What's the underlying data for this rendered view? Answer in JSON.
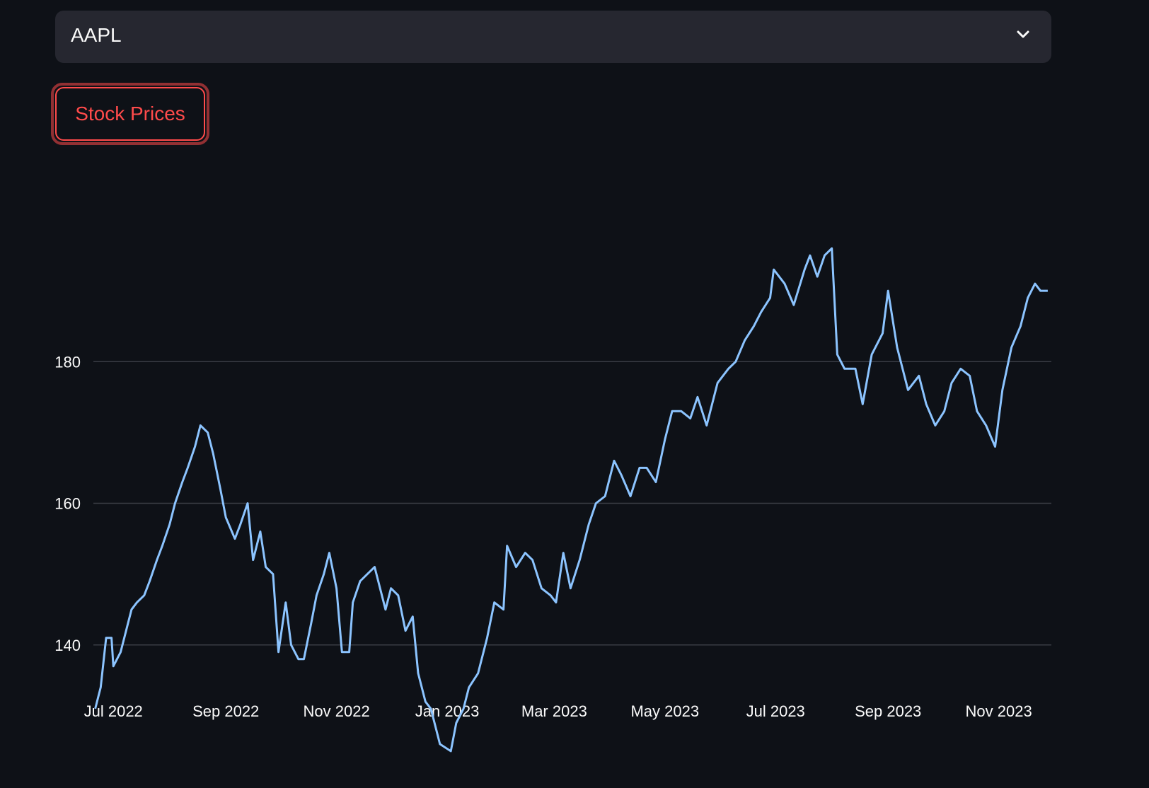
{
  "select": {
    "value": "AAPL"
  },
  "button": {
    "label": "Stock Prices"
  },
  "icons": {
    "select_arrow": "chevron-down-icon"
  },
  "colors": {
    "line": "#8cc4ff",
    "accent": "#ff4b4b",
    "grid": "#3a3d45",
    "background": "#0e1117",
    "select_bg": "#262730"
  },
  "chart_data": {
    "type": "line",
    "title": "",
    "xlabel": "",
    "ylabel": "",
    "x_ticks": [
      "Jul 2022",
      "Sep 2022",
      "Nov 2022",
      "Jan 2023",
      "Mar 2023",
      "May 2023",
      "Jul 2023",
      "Sep 2023",
      "Nov 2023"
    ],
    "y_ticks": [
      140,
      160,
      180
    ],
    "ylim": [
      120,
      200
    ],
    "xlim": [
      "2022-06-20",
      "2023-11-30"
    ],
    "grid": "horizontal",
    "series": [
      {
        "points": [
          [
            "2022-06-21",
            131
          ],
          [
            "2022-06-24",
            134
          ],
          [
            "2022-06-27",
            141
          ],
          [
            "2022-06-30",
            141
          ],
          [
            "2022-07-01",
            137
          ],
          [
            "2022-07-05",
            139
          ],
          [
            "2022-07-08",
            142
          ],
          [
            "2022-07-11",
            145
          ],
          [
            "2022-07-14",
            146
          ],
          [
            "2022-07-18",
            147
          ],
          [
            "2022-07-21",
            149
          ],
          [
            "2022-07-25",
            152
          ],
          [
            "2022-07-28",
            154
          ],
          [
            "2022-08-01",
            157
          ],
          [
            "2022-08-04",
            160
          ],
          [
            "2022-08-08",
            163
          ],
          [
            "2022-08-11",
            165
          ],
          [
            "2022-08-15",
            168
          ],
          [
            "2022-08-18",
            171
          ],
          [
            "2022-08-22",
            170
          ],
          [
            "2022-08-25",
            167
          ],
          [
            "2022-08-29",
            162
          ],
          [
            "2022-09-01",
            158
          ],
          [
            "2022-09-06",
            155
          ],
          [
            "2022-09-09",
            157
          ],
          [
            "2022-09-13",
            160
          ],
          [
            "2022-09-16",
            152
          ],
          [
            "2022-09-20",
            156
          ],
          [
            "2022-09-23",
            151
          ],
          [
            "2022-09-27",
            150
          ],
          [
            "2022-09-30",
            139
          ],
          [
            "2022-10-04",
            146
          ],
          [
            "2022-10-07",
            140
          ],
          [
            "2022-10-11",
            138
          ],
          [
            "2022-10-14",
            138
          ],
          [
            "2022-10-18",
            143
          ],
          [
            "2022-10-21",
            147
          ],
          [
            "2022-10-25",
            150
          ],
          [
            "2022-10-28",
            153
          ],
          [
            "2022-11-01",
            148
          ],
          [
            "2022-11-04",
            139
          ],
          [
            "2022-11-08",
            139
          ],
          [
            "2022-11-10",
            146
          ],
          [
            "2022-11-14",
            149
          ],
          [
            "2022-11-18",
            150
          ],
          [
            "2022-11-22",
            151
          ],
          [
            "2022-11-28",
            145
          ],
          [
            "2022-12-01",
            148
          ],
          [
            "2022-12-05",
            147
          ],
          [
            "2022-12-09",
            142
          ],
          [
            "2022-12-13",
            144
          ],
          [
            "2022-12-16",
            136
          ],
          [
            "2022-12-20",
            132
          ],
          [
            "2022-12-23",
            131
          ],
          [
            "2022-12-28",
            126
          ],
          [
            "2023-01-03",
            125
          ],
          [
            "2023-01-06",
            129
          ],
          [
            "2023-01-10",
            131
          ],
          [
            "2023-01-13",
            134
          ],
          [
            "2023-01-18",
            136
          ],
          [
            "2023-01-23",
            141
          ],
          [
            "2023-01-27",
            146
          ],
          [
            "2023-02-01",
            145
          ],
          [
            "2023-02-03",
            154
          ],
          [
            "2023-02-08",
            151
          ],
          [
            "2023-02-13",
            153
          ],
          [
            "2023-02-17",
            152
          ],
          [
            "2023-02-22",
            148
          ],
          [
            "2023-02-27",
            147
          ],
          [
            "2023-03-02",
            146
          ],
          [
            "2023-03-06",
            153
          ],
          [
            "2023-03-10",
            148
          ],
          [
            "2023-03-15",
            152
          ],
          [
            "2023-03-20",
            157
          ],
          [
            "2023-03-24",
            160
          ],
          [
            "2023-03-29",
            161
          ],
          [
            "2023-04-03",
            166
          ],
          [
            "2023-04-07",
            164
          ],
          [
            "2023-04-12",
            161
          ],
          [
            "2023-04-17",
            165
          ],
          [
            "2023-04-21",
            165
          ],
          [
            "2023-04-26",
            163
          ],
          [
            "2023-05-01",
            169
          ],
          [
            "2023-05-05",
            173
          ],
          [
            "2023-05-10",
            173
          ],
          [
            "2023-05-15",
            172
          ],
          [
            "2023-05-19",
            175
          ],
          [
            "2023-05-24",
            171
          ],
          [
            "2023-05-30",
            177
          ],
          [
            "2023-06-05",
            179
          ],
          [
            "2023-06-09",
            180
          ],
          [
            "2023-06-14",
            183
          ],
          [
            "2023-06-19",
            185
          ],
          [
            "2023-06-23",
            187
          ],
          [
            "2023-06-28",
            189
          ],
          [
            "2023-06-30",
            193
          ],
          [
            "2023-07-06",
            191
          ],
          [
            "2023-07-11",
            188
          ],
          [
            "2023-07-17",
            193
          ],
          [
            "2023-07-20",
            195
          ],
          [
            "2023-07-24",
            192
          ],
          [
            "2023-07-28",
            195
          ],
          [
            "2023-08-01",
            196
          ],
          [
            "2023-08-04",
            181
          ],
          [
            "2023-08-08",
            179
          ],
          [
            "2023-08-14",
            179
          ],
          [
            "2023-08-18",
            174
          ],
          [
            "2023-08-23",
            181
          ],
          [
            "2023-08-29",
            184
          ],
          [
            "2023-09-01",
            190
          ],
          [
            "2023-09-06",
            182
          ],
          [
            "2023-09-12",
            176
          ],
          [
            "2023-09-18",
            178
          ],
          [
            "2023-09-22",
            174
          ],
          [
            "2023-09-27",
            171
          ],
          [
            "2023-10-02",
            173
          ],
          [
            "2023-10-06",
            177
          ],
          [
            "2023-10-11",
            179
          ],
          [
            "2023-10-16",
            178
          ],
          [
            "2023-10-20",
            173
          ],
          [
            "2023-10-25",
            171
          ],
          [
            "2023-10-30",
            168
          ],
          [
            "2023-11-03",
            176
          ],
          [
            "2023-11-08",
            182
          ],
          [
            "2023-11-13",
            185
          ],
          [
            "2023-11-17",
            189
          ],
          [
            "2023-11-21",
            191
          ],
          [
            "2023-11-24",
            190
          ],
          [
            "2023-11-28",
            190
          ]
        ]
      }
    ]
  }
}
